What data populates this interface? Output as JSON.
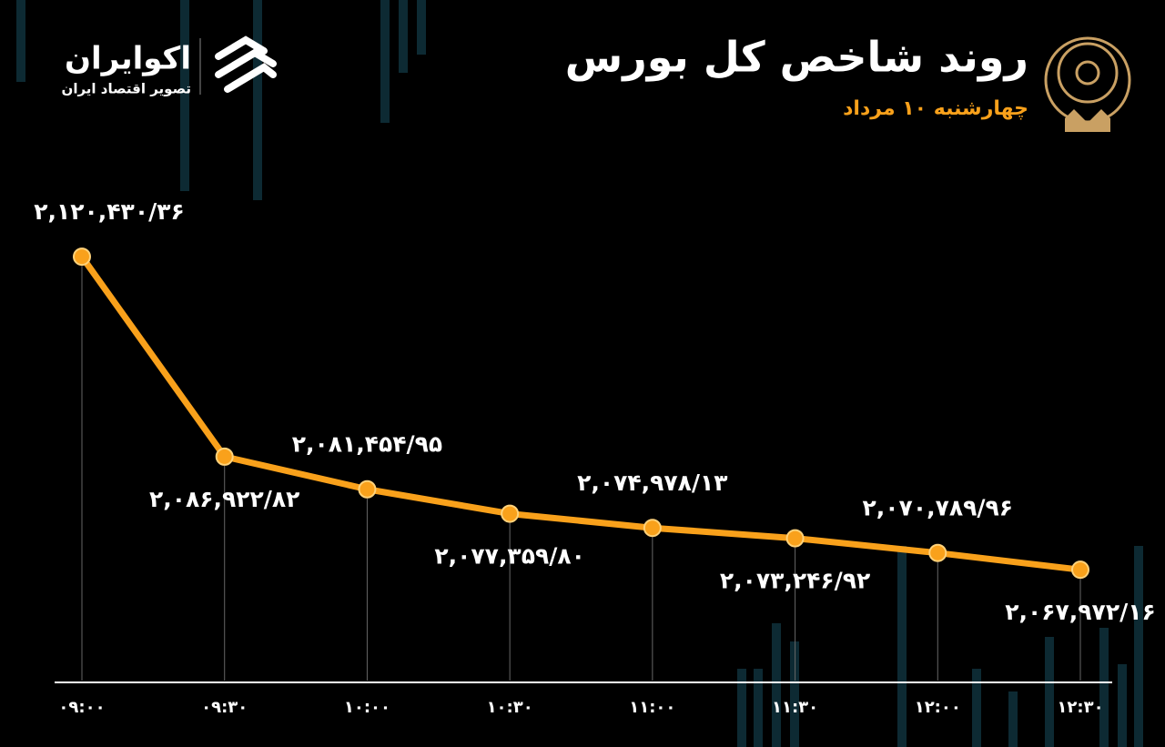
{
  "chart_data": {
    "type": "line",
    "title": "روند شاخص کل بورس",
    "subtitle": "چهارشنبه ۱۰ مرداد",
    "annotations": [
      "اکوایران",
      "تصویر اقتصاد ایران"
    ],
    "categories": [
      "۰۹:۰۰",
      "۰۹:۳۰",
      "۱۰:۰۰",
      "۱۰:۳۰",
      "۱۱:۰۰",
      "۱۱:۳۰",
      "۱۲:۰۰",
      "۱۲:۳۰"
    ],
    "values": [
      2120430.36,
      2086922.82,
      2081454.95,
      2077359.8,
      2074978.13,
      2073246.92,
      2070789.96,
      2067972.16
    ],
    "value_labels": [
      "۲,۱۲۰,۴۳۰/۳۶",
      "۲,۰۸۶,۹۲۲/۸۲",
      "۲,۰۸۱,۴۵۴/۹۵",
      "۲,۰۷۷,۳۵۹/۸۰",
      "۲,۰۷۴,۹۷۸/۱۳",
      "۲,۰۷۳,۲۴۶/۹۲",
      "۲,۰۷۰,۷۸۹/۹۶",
      "۲,۰۶۷,۹۷۲/۱۶"
    ],
    "color": "#f9a11b",
    "ylim": [
      2049400,
      2127000
    ]
  }
}
